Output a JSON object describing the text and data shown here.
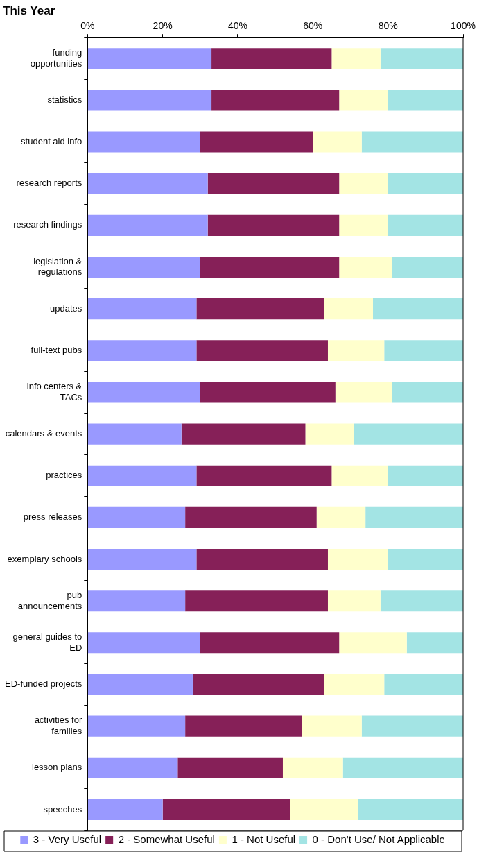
{
  "chart_data": {
    "type": "bar",
    "orientation": "horizontal",
    "stacked": true,
    "title": "This Year",
    "categories": [
      "funding opportunities",
      "statistics",
      "student aid info",
      "research reports",
      "research findings",
      "legislation & regulations",
      "updates",
      "full-text pubs",
      "info centers & TACs",
      "calendars & events",
      "practices",
      "press releases",
      "exemplary schools",
      "pub announcements",
      "general guides to ED",
      "ED-funded projects",
      "activities for families",
      "lesson plans",
      "speeches"
    ],
    "series": [
      {
        "name": "3 - Very Useful",
        "color": "#9999ff",
        "values": [
          33,
          33,
          30,
          32,
          32,
          30,
          29,
          29,
          30,
          25,
          29,
          26,
          29,
          26,
          30,
          28,
          26,
          24,
          20
        ]
      },
      {
        "name": "2 - Somewhat Useful",
        "color": "#862058",
        "values": [
          32,
          34,
          30,
          35,
          35,
          37,
          34,
          35,
          36,
          33,
          36,
          35,
          35,
          38,
          37,
          35,
          31,
          28,
          34
        ]
      },
      {
        "name": "1 - Not Useful",
        "color": "#ffffcc",
        "values": [
          13,
          13,
          13,
          13,
          13,
          14,
          13,
          15,
          15,
          13,
          15,
          13,
          16,
          14,
          18,
          16,
          16,
          16,
          18
        ]
      },
      {
        "name": "0 - Don't Use/ Not Applicable",
        "color": "#a3e4e4",
        "values": [
          22,
          20,
          27,
          20,
          20,
          19,
          24,
          21,
          19,
          29,
          20,
          26,
          20,
          22,
          15,
          21,
          27,
          32,
          28
        ]
      }
    ],
    "xlim": [
      0,
      100
    ],
    "xticks": [
      {
        "value": 0,
        "label": "0%"
      },
      {
        "value": 20,
        "label": "20%"
      },
      {
        "value": 40,
        "label": "40%"
      },
      {
        "value": 60,
        "label": "60%"
      },
      {
        "value": 80,
        "label": "80%"
      },
      {
        "value": 100,
        "label": "100%"
      }
    ],
    "grid": false,
    "legend": "bottom"
  }
}
